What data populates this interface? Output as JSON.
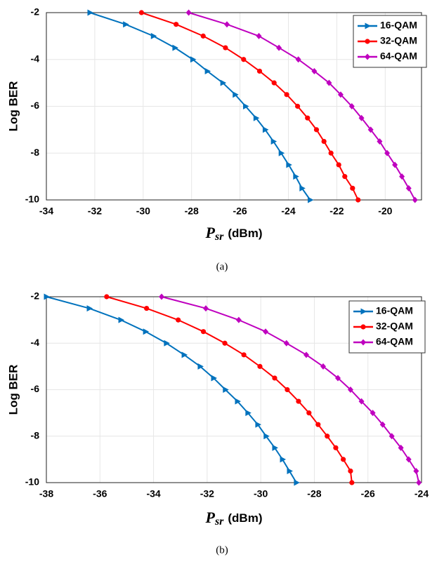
{
  "chart_data": [
    {
      "type": "line",
      "caption": "(a)",
      "ylabel": "Log BER",
      "xlabel": {
        "symbol": "P",
        "subscript": "sr",
        "unit": "(dBm)"
      },
      "xlim": [
        -34,
        -18.5
      ],
      "xticks": [
        -34,
        -32,
        -30,
        -28,
        -26,
        -24,
        -22,
        -20
      ],
      "ylim": [
        -10,
        -2
      ],
      "yticks": [
        -10,
        -8,
        -6,
        -4,
        -2
      ],
      "grid": true,
      "legend": "top-right",
      "series": [
        {
          "name": "16-QAM",
          "color": "#0072BD",
          "marker": "triangle-right",
          "x": [
            -32.2,
            -30.73,
            -29.58,
            -28.69,
            -27.95,
            -27.35,
            -26.71,
            -26.2,
            -25.77,
            -25.34,
            -24.96,
            -24.62,
            -24.3,
            -23.99,
            -23.7,
            -23.44,
            -23.1
          ],
          "values": [
            -2,
            -2.5,
            -3,
            -3.5,
            -4,
            -4.5,
            -5,
            -5.5,
            -6,
            -6.5,
            -7,
            -7.5,
            -8,
            -8.5,
            -9,
            -9.5,
            -10
          ]
        },
        {
          "name": "32-QAM",
          "color": "#FF0000",
          "marker": "circle",
          "x": [
            -30.07,
            -28.64,
            -27.52,
            -26.6,
            -25.85,
            -25.19,
            -24.59,
            -24.07,
            -23.62,
            -23.21,
            -22.84,
            -22.53,
            -22.24,
            -21.92,
            -21.67,
            -21.35,
            -21.12
          ],
          "values": [
            -2,
            -2.5,
            -3,
            -3.5,
            -4,
            -4.5,
            -5,
            -5.5,
            -6,
            -6.5,
            -7,
            -7.5,
            -8,
            -8.5,
            -9,
            -9.5,
            -10
          ]
        },
        {
          "name": "64-QAM",
          "color": "#BF00BF",
          "marker": "diamond",
          "x": [
            -28.12,
            -26.54,
            -25.22,
            -24.39,
            -23.59,
            -22.93,
            -22.32,
            -21.84,
            -21.38,
            -20.98,
            -20.6,
            -20.23,
            -19.92,
            -19.6,
            -19.31,
            -19.03,
            -18.77
          ],
          "values": [
            -2,
            -2.5,
            -3,
            -3.5,
            -4,
            -4.5,
            -5,
            -5.5,
            -6,
            -6.5,
            -7,
            -7.5,
            -8,
            -8.5,
            -9,
            -9.5,
            -10
          ]
        }
      ]
    },
    {
      "type": "line",
      "caption": "(b)",
      "ylabel": "Log BER",
      "xlabel": {
        "symbol": "P",
        "subscript": "sr",
        "unit": "(dBm)"
      },
      "xlim": [
        -38,
        -24
      ],
      "xticks": [
        -38,
        -36,
        -34,
        -32,
        -30,
        -28,
        -26,
        -24
      ],
      "ylim": [
        -10,
        -2
      ],
      "yticks": [
        -10,
        -8,
        -6,
        -4,
        -2
      ],
      "grid": true,
      "legend": "top-right",
      "series": [
        {
          "name": "16-QAM",
          "color": "#0072BD",
          "marker": "triangle-right",
          "x": [
            -38,
            -36.4,
            -35.22,
            -34.3,
            -33.52,
            -32.86,
            -32.26,
            -31.76,
            -31.32,
            -30.87,
            -30.48,
            -30.11,
            -29.8,
            -29.48,
            -29.19,
            -28.93,
            -28.67
          ],
          "values": [
            -2,
            -2.5,
            -3,
            -3.5,
            -4,
            -4.5,
            -5,
            -5.5,
            -6,
            -6.5,
            -7,
            -7.5,
            -8,
            -8.5,
            -9,
            -9.5,
            -10
          ]
        },
        {
          "name": "32-QAM",
          "color": "#FF0000",
          "marker": "circle",
          "x": [
            -35.75,
            -34.26,
            -33.08,
            -32.14,
            -31.34,
            -30.63,
            -30.03,
            -29.48,
            -29.01,
            -28.59,
            -28.2,
            -27.86,
            -27.52,
            -27.2,
            -26.92,
            -26.65,
            -26.6
          ],
          "values": [
            -2,
            -2.5,
            -3,
            -3.5,
            -4,
            -4.5,
            -5,
            -5.5,
            -6,
            -6.5,
            -7,
            -7.5,
            -8,
            -8.5,
            -9,
            -9.5,
            -10
          ]
        },
        {
          "name": "64-QAM",
          "color": "#BF00BF",
          "marker": "diamond",
          "x": [
            -33.7,
            -32.05,
            -30.82,
            -29.82,
            -29.04,
            -28.3,
            -27.67,
            -27.12,
            -26.65,
            -26.24,
            -25.82,
            -25.45,
            -25.11,
            -24.77,
            -24.48,
            -24.2,
            -24.1
          ],
          "values": [
            -2,
            -2.5,
            -3,
            -3.5,
            -4,
            -4.5,
            -5,
            -5.5,
            -6,
            -6.5,
            -7,
            -7.5,
            -8,
            -8.5,
            -9,
            -9.5,
            -10
          ]
        }
      ]
    }
  ]
}
